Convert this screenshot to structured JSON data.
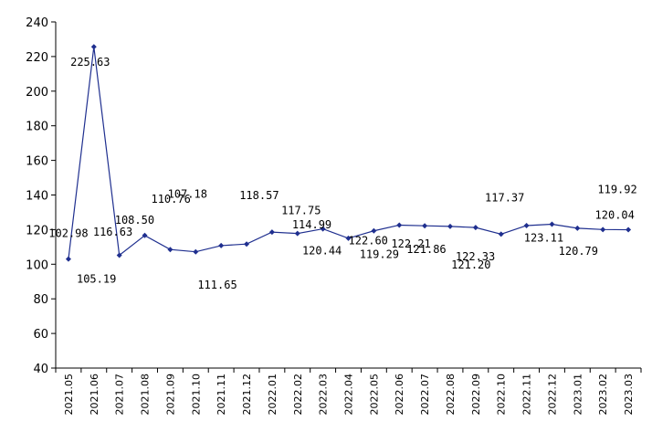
{
  "chart_data": {
    "type": "line",
    "title": "",
    "xlabel": "",
    "ylabel": "",
    "ylim": [
      40,
      240
    ],
    "yticks": [
      40,
      60,
      80,
      100,
      120,
      140,
      160,
      180,
      200,
      220,
      240
    ],
    "grid": false,
    "legend": "none",
    "line_color": "#1f2f8f",
    "categories": [
      "2021.05",
      "2021.06",
      "2021.07",
      "2021.08",
      "2021.09",
      "2021.10",
      "2021.11",
      "2021.12",
      "2022.01",
      "2022.02",
      "2022.03",
      "2022.04",
      "2022.05",
      "2022.06",
      "2022.07",
      "2022.08",
      "2022.09",
      "2022.10",
      "2022.11",
      "2022.12",
      "2023.01",
      "2023.02",
      "2023.03"
    ],
    "values": [
      102.98,
      225.63,
      105.19,
      116.63,
      108.5,
      107.18,
      110.76,
      111.65,
      118.57,
      117.75,
      120.44,
      114.99,
      119.29,
      122.6,
      122.21,
      121.86,
      121.2,
      117.37,
      122.33,
      123.11,
      120.79,
      120.04,
      119.92
    ],
    "value_labels": [
      "102.98",
      "225.63",
      "105.19",
      "116.63",
      "108.50",
      "107.18",
      "110.76",
      "111.65",
      "118.57",
      "117.75",
      "120.44",
      "114.99",
      "119.29",
      "122.60",
      "122.21",
      "121.86",
      "121.20",
      "117.37",
      "122.33",
      "123.11",
      "120.79",
      "120.04",
      "119.92"
    ]
  }
}
